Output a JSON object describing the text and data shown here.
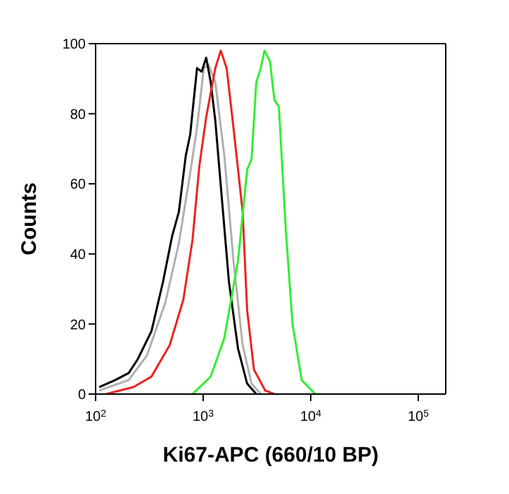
{
  "chart_data": {
    "type": "line",
    "xlabel": "Ki67-APC  (660/10 BP)",
    "ylabel": "Counts",
    "log": "x",
    "xlim": [
      100,
      180000
    ],
    "xticks": [
      {
        "value": 100,
        "label": "10$^{2}$"
      },
      {
        "value": 1000,
        "label": "10$^{3}$"
      },
      {
        "value": 10000,
        "label": "10$^{4}$"
      },
      {
        "value": 100000,
        "label": "10$^{5}$"
      }
    ],
    "ylim": [
      0,
      100
    ],
    "yticks": [
      0,
      20,
      40,
      60,
      80,
      100
    ],
    "grid": false,
    "marker": "none",
    "line_style": "solid",
    "series": [
      {
        "color": "#b0b0b0",
        "x": [
          108,
          203,
          300,
          444,
          594,
          757,
          877,
          1014,
          1120,
          1297,
          1574,
          1914,
          2328,
          2818,
          3433
        ],
        "values": [
          1,
          4,
          11,
          26,
          43,
          63,
          76,
          93,
          94,
          89,
          68,
          38,
          14,
          3,
          0
        ]
      },
      {
        "color": "#000000",
        "x": [
          108,
          152,
          203,
          247,
          331,
          423,
          514,
          594,
          689,
          757,
          877,
          968,
          1067,
          1175,
          1297,
          1500,
          1737,
          2108,
          2563,
          3118
        ],
        "values": [
          2,
          4,
          6,
          10,
          18,
          32,
          45,
          52,
          68,
          74,
          93,
          92,
          96,
          89,
          78,
          55,
          32,
          13,
          3,
          0
        ]
      },
      {
        "color": "#e8251f",
        "x": [
          125,
          225,
          331,
          489,
          655,
          796,
          921,
          1067,
          1297,
          1459,
          1653,
          1914,
          2328,
          2563,
          2966,
          3776,
          4592
        ],
        "values": [
          0,
          2,
          5,
          14,
          27,
          44,
          65,
          79,
          93,
          98,
          93,
          76,
          52,
          24,
          7,
          1,
          0
        ]
      },
      {
        "color": "#33ee33",
        "x": [
          796,
          1175,
          1574,
          2108,
          2563,
          2818,
          3118,
          3433,
          3715,
          4178,
          4592,
          5058,
          5861,
          6775,
          8241,
          11040
        ],
        "values": [
          0,
          5,
          16,
          38,
          64,
          67,
          89,
          93,
          98,
          95,
          84,
          82,
          47,
          20,
          4,
          0
        ]
      }
    ]
  }
}
